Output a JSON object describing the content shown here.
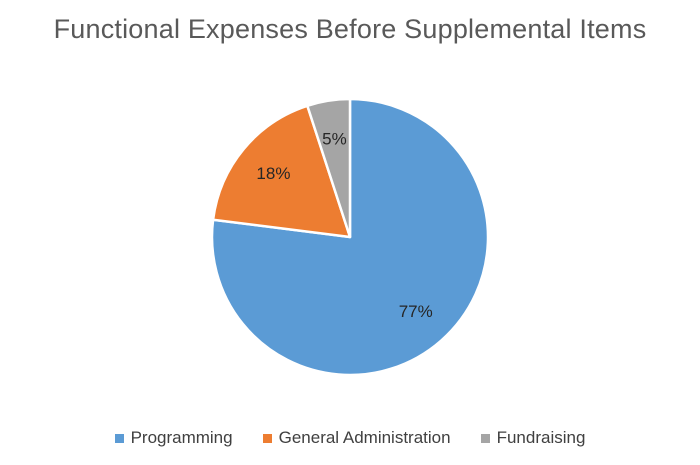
{
  "chart_data": {
    "type": "pie",
    "title": "Functional Expenses Before Supplemental Items",
    "legend_position": "bottom",
    "slices": [
      {
        "label": "Programming",
        "value": 77,
        "data_label": "77%",
        "color": "#5B9BD5"
      },
      {
        "label": "General Administration",
        "value": 18,
        "data_label": "18%",
        "color": "#ED7D31"
      },
      {
        "label": "Fundraising",
        "value": 5,
        "data_label": "5%",
        "color": "#A5A5A5"
      }
    ]
  }
}
